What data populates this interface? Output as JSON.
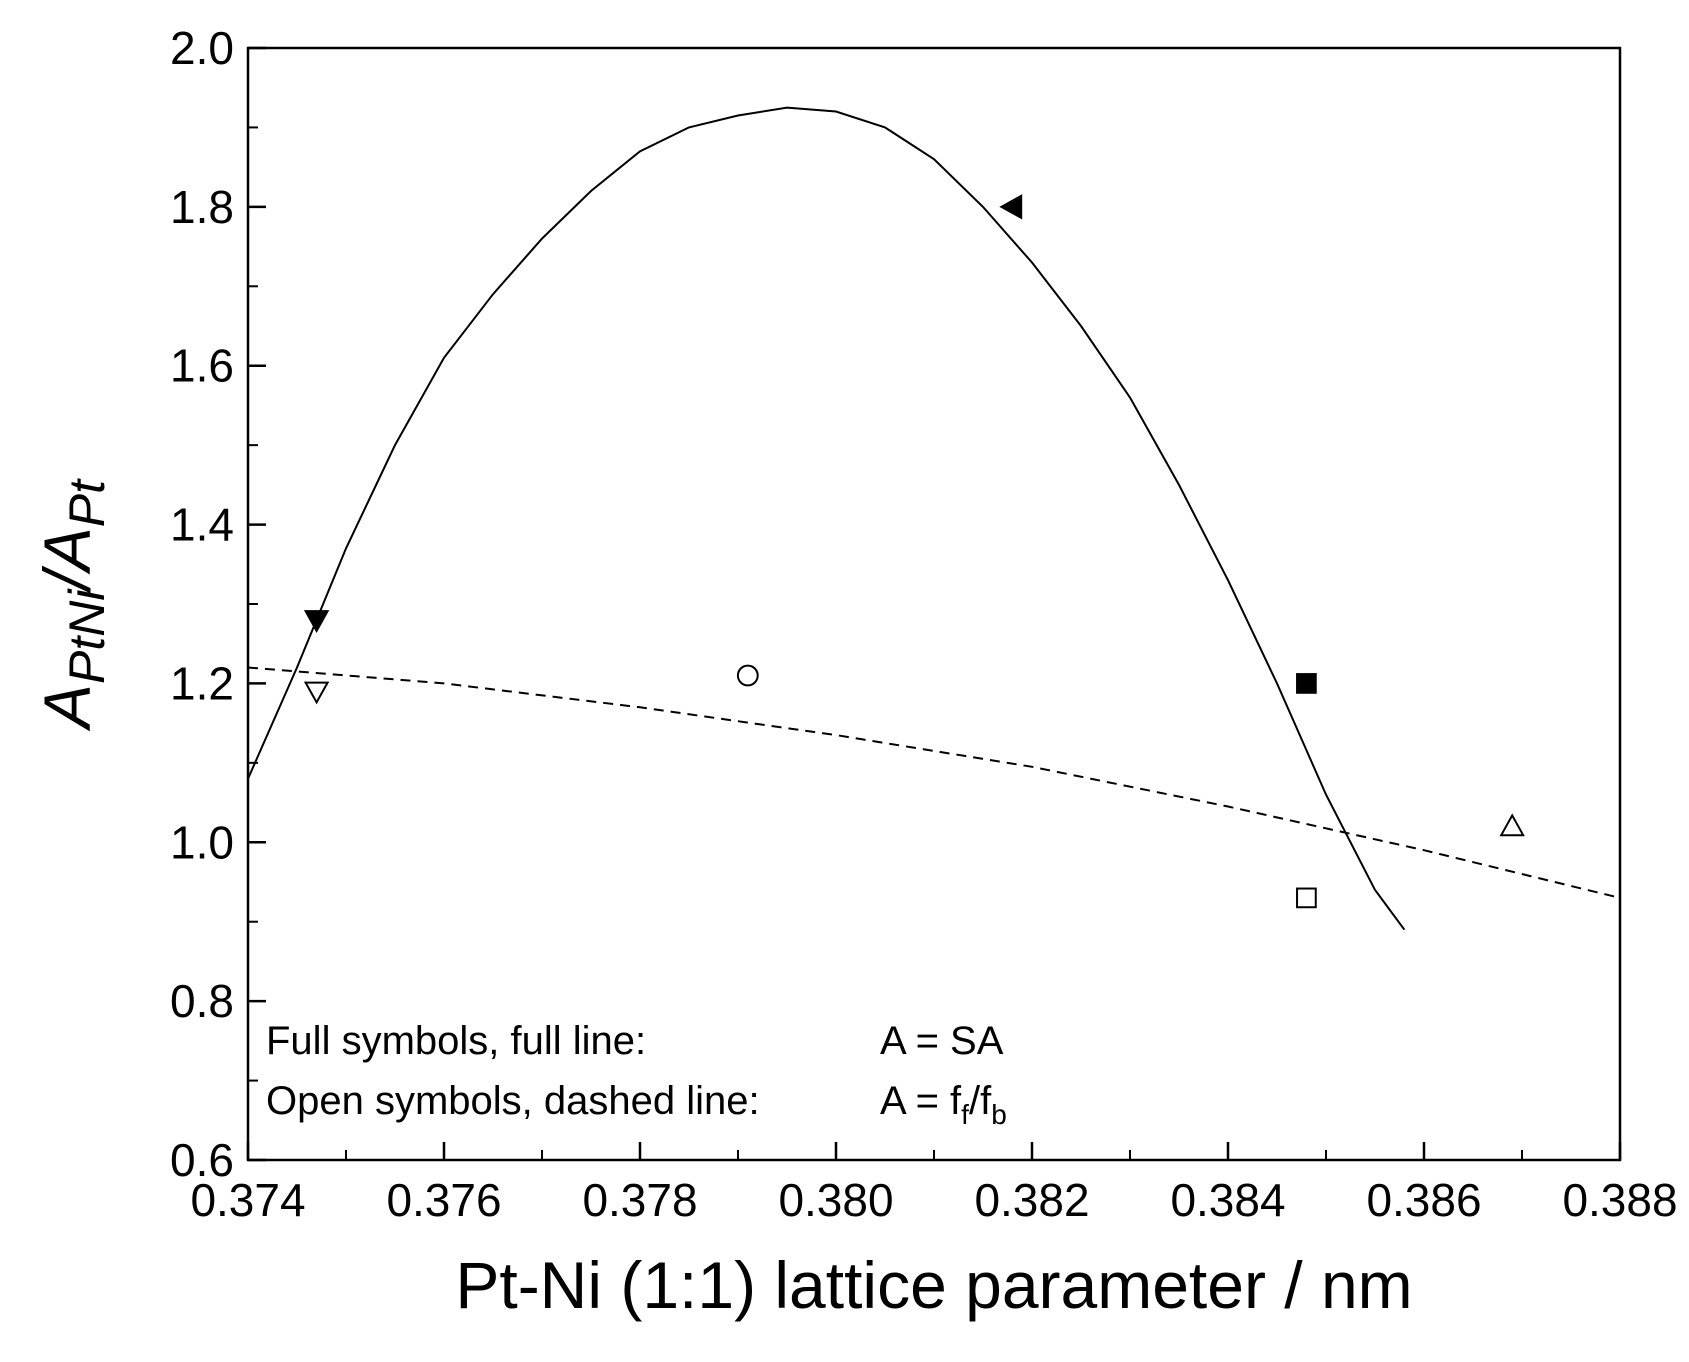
{
  "chart_data": {
    "type": "scatter",
    "xlabel": "Pt-Ni (1:1) lattice parameter / nm",
    "ylabel": {
      "main_1": "A",
      "sub_1": "PtNi",
      "slash": "/",
      "main_2": "A",
      "sub_2": "Pt"
    },
    "xlim": [
      0.374,
      0.388
    ],
    "ylim": [
      0.6,
      2.0
    ],
    "x_ticks": [
      "0.374",
      "0.376",
      "0.378",
      "0.380",
      "0.382",
      "0.384",
      "0.386",
      "0.388"
    ],
    "y_ticks": [
      "0.6",
      "0.8",
      "1.0",
      "1.2",
      "1.4",
      "1.6",
      "1.8",
      "2.0"
    ],
    "grid": false,
    "series": [
      {
        "style": "full symbols, solid line",
        "points": [
          {
            "x": 0.3747,
            "y": 1.28,
            "marker": "triangle-down-filled"
          },
          {
            "x": 0.3818,
            "y": 1.8,
            "marker": "triangle-left-filled"
          },
          {
            "x": 0.3848,
            "y": 1.2,
            "marker": "square-filled"
          }
        ],
        "fit_curve": {
          "x": [
            0.374,
            0.3745,
            0.375,
            0.3755,
            0.376,
            0.3765,
            0.377,
            0.3775,
            0.378,
            0.3785,
            0.379,
            0.3795,
            0.38,
            0.3805,
            0.381,
            0.3815,
            0.382,
            0.3825,
            0.383,
            0.3835,
            0.384,
            0.3845,
            0.385,
            0.3855,
            0.3858
          ],
          "y": [
            1.08,
            1.22,
            1.37,
            1.5,
            1.61,
            1.69,
            1.76,
            1.82,
            1.87,
            1.9,
            1.915,
            1.925,
            1.92,
            1.9,
            1.86,
            1.8,
            1.73,
            1.65,
            1.56,
            1.45,
            1.33,
            1.2,
            1.06,
            0.94,
            0.89
          ]
        }
      },
      {
        "style": "open symbols, dashed line",
        "points": [
          {
            "x": 0.3747,
            "y": 1.19,
            "marker": "triangle-down-open"
          },
          {
            "x": 0.3791,
            "y": 1.21,
            "marker": "circle-open"
          },
          {
            "x": 0.3848,
            "y": 0.93,
            "marker": "square-open"
          },
          {
            "x": 0.3869,
            "y": 1.02,
            "marker": "triangle-up-open"
          }
        ],
        "fit_curve": {
          "x": [
            0.374,
            0.376,
            0.378,
            0.38,
            0.382,
            0.384,
            0.386,
            0.388
          ],
          "y": [
            1.22,
            1.2,
            1.17,
            1.135,
            1.095,
            1.045,
            0.99,
            0.93
          ]
        }
      }
    ],
    "legend": {
      "line1_label": "Full symbols, full line:",
      "line1_value": "A = SA",
      "line2_label": "Open symbols, dashed line:",
      "line2_value_main": "A = f",
      "line2_sub1": "f",
      "line2_slash": "/f",
      "line2_sub2": "b",
      "placement": "bottom-left"
    }
  }
}
